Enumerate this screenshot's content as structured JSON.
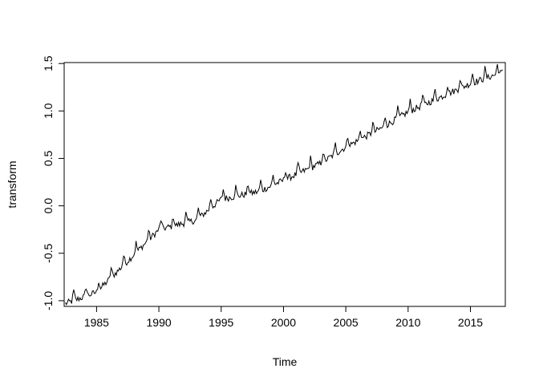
{
  "chart_data": {
    "type": "line",
    "title": "",
    "xlabel": "Time",
    "ylabel": "transform",
    "xlim": [
      1982.4,
      2017.8
    ],
    "ylim": [
      -1.06,
      1.51
    ],
    "grid": false,
    "x_ticks": [
      1985,
      1990,
      1995,
      2000,
      2005,
      2010,
      2015
    ],
    "y_ticks": [
      -1.0,
      -0.5,
      0.0,
      0.5,
      1.0,
      1.5
    ],
    "x_tick_labels": [
      "1985",
      "1990",
      "1995",
      "2000",
      "2005",
      "2010",
      "2015"
    ],
    "y_tick_labels": [
      "-1.0",
      "-0.5",
      "0.0",
      "0.5",
      "1.0",
      "1.5"
    ],
    "series": [
      {
        "name": "transform",
        "start": 1982.5,
        "frequency": 12,
        "trend_knots": [
          [
            1982.5,
            -1.02
          ],
          [
            1985,
            -0.9
          ],
          [
            1990,
            -0.24
          ],
          [
            1993,
            -0.14
          ],
          [
            1995,
            0.08
          ],
          [
            1998,
            0.16
          ],
          [
            2000,
            0.28
          ],
          [
            2003,
            0.46
          ],
          [
            2005,
            0.63
          ],
          [
            2008,
            0.84
          ],
          [
            2010,
            1.0
          ],
          [
            2015,
            1.3
          ],
          [
            2017.6,
            1.42
          ]
        ],
        "seasonal_peak_month": 2,
        "seasonal_amplitude": 0.09,
        "noise_amplitude": 0.035
      }
    ]
  }
}
